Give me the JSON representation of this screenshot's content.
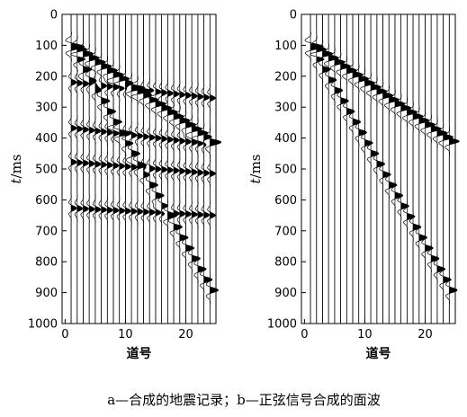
{
  "caption": "a—合成的地震记录；b—正弦信号合成的面波",
  "chart_data": [
    {
      "type": "seismic-wiggle",
      "panel": "a",
      "ylabel_italic": "t",
      "ylabel_unit": "/ms",
      "xlabel": "道号",
      "ylim": [
        0,
        1000
      ],
      "yticks": [
        0,
        100,
        200,
        300,
        400,
        500,
        600,
        700,
        800,
        900,
        1000
      ],
      "xlim": [
        -0.5,
        25
      ],
      "xticks": [
        0,
        10,
        20
      ],
      "traces": [
        1,
        2,
        3,
        4,
        5,
        6,
        7,
        8,
        9,
        10,
        11,
        12,
        13,
        14,
        15,
        16,
        17,
        18,
        19,
        20,
        21,
        22,
        23,
        24
      ],
      "events": [
        {
          "name": "direct",
          "t0_ms": 100,
          "slope_ms_per_trace": 13.5,
          "amp": 1.0
        },
        {
          "name": "surface",
          "t0_ms": 110,
          "slope_ms_per_trace": 34,
          "amp": 0.85
        },
        {
          "name": "reflection-1",
          "t0_ms": 220,
          "slope_ms_per_trace": 2.2,
          "amp": 0.55
        },
        {
          "name": "reflection-2",
          "t0_ms": 368,
          "slope_ms_per_trace": 2.3,
          "amp": 0.55
        },
        {
          "name": "reflection-3",
          "t0_ms": 478,
          "slope_ms_per_trace": 1.6,
          "amp": 0.55
        },
        {
          "name": "reflection-4",
          "t0_ms": 627,
          "slope_ms_per_trace": 1.0,
          "amp": 0.55
        }
      ]
    },
    {
      "type": "seismic-wiggle",
      "panel": "b",
      "ylabel_italic": "t",
      "ylabel_unit": "/ms",
      "xlabel": "道号",
      "ylim": [
        0,
        1000
      ],
      "yticks": [
        0,
        100,
        200,
        300,
        400,
        500,
        600,
        700,
        800,
        900,
        1000
      ],
      "xlim": [
        -0.5,
        25
      ],
      "xticks": [
        0,
        10,
        20
      ],
      "traces": [
        1,
        2,
        3,
        4,
        5,
        6,
        7,
        8,
        9,
        10,
        11,
        12,
        13,
        14,
        15,
        16,
        17,
        18,
        19,
        20,
        21,
        22,
        23,
        24
      ],
      "events": [
        {
          "name": "direct",
          "t0_ms": 100,
          "slope_ms_per_trace": 13.5,
          "amp": 1.0
        },
        {
          "name": "surface",
          "t0_ms": 110,
          "slope_ms_per_trace": 34,
          "amp": 0.8
        }
      ]
    }
  ]
}
